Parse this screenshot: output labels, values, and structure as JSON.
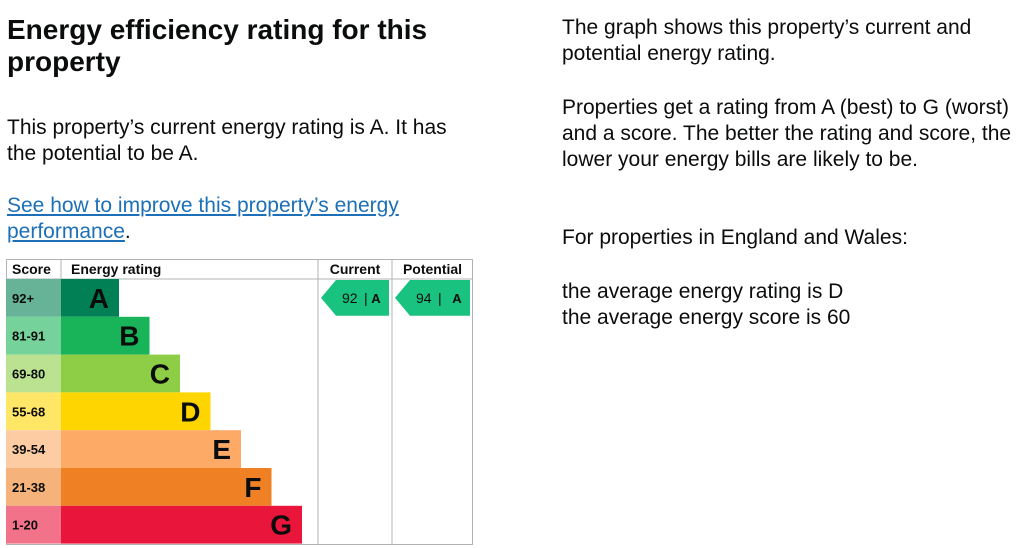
{
  "heading": "Energy efficiency rating for this property",
  "current_text": "This property’s current energy rating is A. It has the potential to be A.",
  "link": {
    "text": "See how to improve this property’s energy performance",
    "after": "."
  },
  "info": {
    "p1": "The graph shows this property’s current and potential energy rating.",
    "p2": "Properties get a rating from A (best) to G (worst) and a score. The better the rating and score, the lower your energy bills are likely to be.",
    "p3": "For properties in England and Wales:",
    "p4a": "the average energy rating is D",
    "p4b": "the average energy score is 60"
  },
  "chart_data": {
    "type": "table",
    "headers": {
      "score": "Score",
      "rating": "Energy rating",
      "current": "Current",
      "potential": "Potential"
    },
    "bands": [
      {
        "range": "92+",
        "letter": "A",
        "color": "#008054",
        "score_bg": "#66b398"
      },
      {
        "range": "81-91",
        "letter": "B",
        "color": "#19b459",
        "score_bg": "#75d29b"
      },
      {
        "range": "69-80",
        "letter": "C",
        "color": "#8dce46",
        "score_bg": "#bbe290"
      },
      {
        "range": "55-68",
        "letter": "D",
        "color": "#ffd500",
        "score_bg": "#ffe666"
      },
      {
        "range": "39-54",
        "letter": "E",
        "color": "#fcaa65",
        "score_bg": "#fdcca3"
      },
      {
        "range": "21-38",
        "letter": "F",
        "color": "#ef8023",
        "score_bg": "#f5b37b"
      },
      {
        "range": "1-20",
        "letter": "G",
        "color": "#e9153b",
        "score_bg": "#f27389"
      }
    ],
    "current": {
      "score": 92,
      "letter": "A",
      "label": "92 |  A"
    },
    "potential": {
      "score": 94,
      "letter": "A",
      "label": "94 |  A"
    },
    "arrow_color": "#19c27f"
  }
}
